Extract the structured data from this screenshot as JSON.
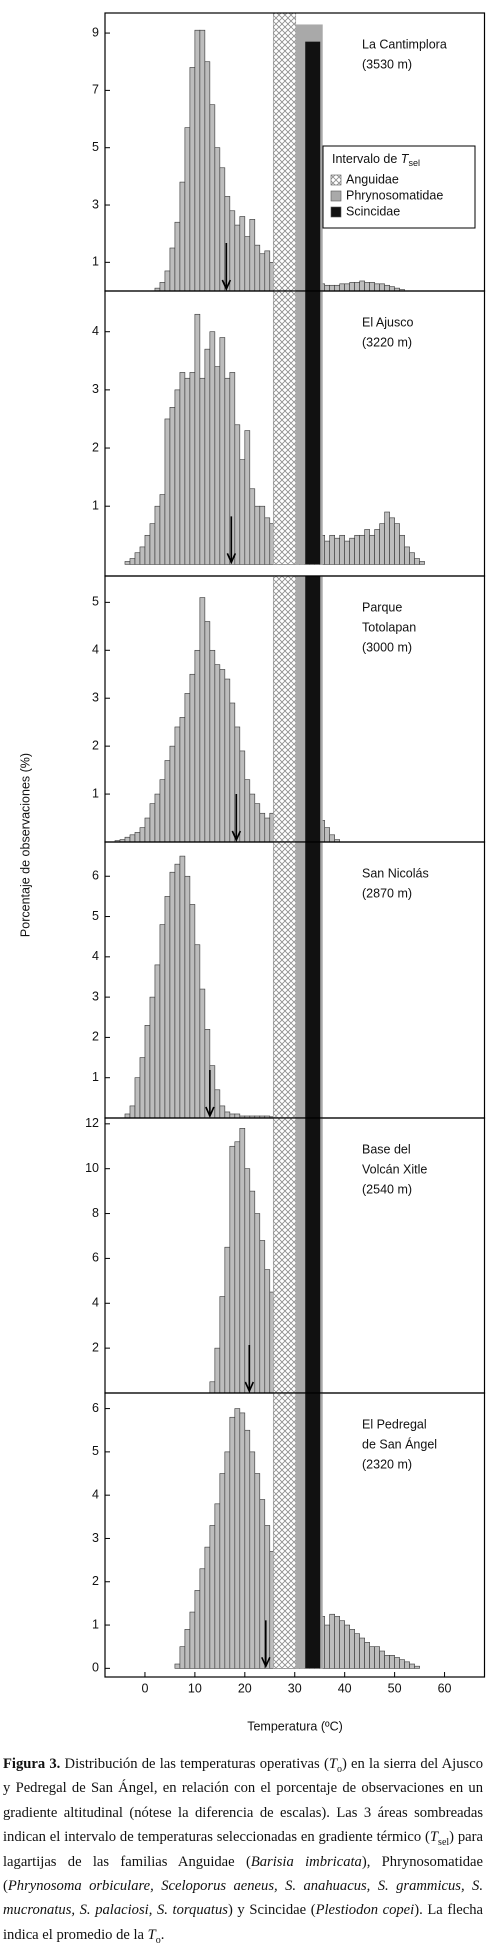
{
  "y_axis_title": "Porcentaje de observaciones (%)",
  "x_axis": {
    "title": "Temperatura (ºC)",
    "xlim": [
      -8,
      68
    ],
    "xticks": [
      0,
      10,
      20,
      30,
      40,
      50,
      60
    ]
  },
  "bands": [
    {
      "name": "Anguidae",
      "range": [
        25.7,
        30.2
      ],
      "pattern": "crosshatch",
      "color": "#8c8c8c"
    },
    {
      "name": "Phrynosomatidae",
      "range": [
        30.2,
        35.6
      ],
      "color": "#a9a9a9"
    },
    {
      "name": "Scincidae",
      "range": [
        32.1,
        35.1
      ],
      "color": "#111111"
    }
  ],
  "legend": {
    "title": "Intervalo de ",
    "title_symbol": "T",
    "title_subscript": "sel"
  },
  "chart_data": [
    {
      "type": "histogram",
      "label_lines": [
        "La Cantimplora",
        "(3530 m)"
      ],
      "color": "#bdbdbd",
      "bins": [
        2,
        3,
        4,
        5,
        6,
        7,
        8,
        9,
        10,
        11,
        12,
        13,
        14,
        15,
        16,
        17,
        18,
        19,
        20,
        21,
        22,
        23,
        24,
        25,
        26,
        27,
        28,
        29,
        30,
        31,
        32,
        33,
        34,
        35,
        36,
        37,
        38,
        39,
        40,
        41,
        42,
        43,
        44,
        45,
        46,
        47,
        48,
        49,
        50,
        51,
        52
      ],
      "values": [
        0.1,
        0.3,
        0.7,
        1.5,
        2.4,
        3.8,
        5.7,
        7.8,
        9.1,
        9.1,
        8.0,
        6.5,
        5.0,
        4.3,
        3.3,
        2.8,
        2.3,
        2.6,
        1.9,
        2.5,
        1.6,
        1.3,
        1.4,
        1.0,
        0.7,
        0.6,
        0.5,
        0.4,
        0.4,
        0.35,
        0.3,
        0.3,
        0.3,
        0.25,
        0.2,
        0.2,
        0.2,
        0.25,
        0.25,
        0.3,
        0.3,
        0.35,
        0.3,
        0.3,
        0.25,
        0.25,
        0.2,
        0.15,
        0.1,
        0.05
      ],
      "ylim": [
        0,
        9.7
      ],
      "yticks": [
        1,
        3,
        5,
        7,
        9
      ],
      "mean": 16.3,
      "band_tops": [
        null,
        9.3,
        8.7
      ]
    },
    {
      "type": "histogram",
      "label_lines": [
        "El Ajusco",
        "(3220 m)"
      ],
      "color": "#bdbdbd",
      "bins": [
        -4,
        -3,
        -2,
        -1,
        0,
        1,
        2,
        3,
        4,
        5,
        6,
        7,
        8,
        9,
        10,
        11,
        12,
        13,
        14,
        15,
        16,
        17,
        18,
        19,
        20,
        21,
        22,
        23,
        24,
        25,
        26,
        27,
        28,
        29,
        30,
        31,
        32,
        33,
        34,
        35,
        36,
        37,
        38,
        39,
        40,
        41,
        42,
        43,
        44,
        45,
        46,
        47,
        48,
        49,
        50,
        51,
        52,
        53,
        54,
        55,
        56
      ],
      "values": [
        0.05,
        0.1,
        0.2,
        0.3,
        0.5,
        0.7,
        1.0,
        1.2,
        2.5,
        2.7,
        3.0,
        3.3,
        3.2,
        3.3,
        4.3,
        3.2,
        3.7,
        4.0,
        3.4,
        3.9,
        3.2,
        3.3,
        2.4,
        1.8,
        2.3,
        1.3,
        1.0,
        1.0,
        0.8,
        0.7,
        0.6,
        0.5,
        0.5,
        0.4,
        0.45,
        0.4,
        0.5,
        0.4,
        0.4,
        0.5,
        0.4,
        0.5,
        0.45,
        0.5,
        0.4,
        0.45,
        0.5,
        0.5,
        0.6,
        0.5,
        0.6,
        0.7,
        0.9,
        0.8,
        0.7,
        0.5,
        0.3,
        0.2,
        0.1,
        0.05
      ],
      "ylim": [
        -0.2,
        4.7
      ],
      "yticks": [
        1,
        2,
        3,
        4
      ],
      "mean": 17.3
    },
    {
      "type": "histogram",
      "label_lines": [
        "Parque",
        "Totolapan",
        "(3000 m)"
      ],
      "color": "#bdbdbd",
      "bins": [
        -6,
        -5,
        -4,
        -3,
        -2,
        -1,
        0,
        1,
        2,
        3,
        4,
        5,
        6,
        7,
        8,
        9,
        10,
        11,
        12,
        13,
        14,
        15,
        16,
        17,
        18,
        19,
        20,
        21,
        22,
        23,
        24,
        25,
        26,
        27,
        28,
        29,
        30,
        31,
        32,
        33,
        34,
        35,
        36,
        37,
        38,
        39
      ],
      "values": [
        0.03,
        0.05,
        0.1,
        0.15,
        0.2,
        0.3,
        0.5,
        0.8,
        1.0,
        1.3,
        1.7,
        2.0,
        2.4,
        2.6,
        3.1,
        3.5,
        4.0,
        5.1,
        4.6,
        4.0,
        3.7,
        3.6,
        3.4,
        2.9,
        2.4,
        1.9,
        1.3,
        1.0,
        0.8,
        0.6,
        0.5,
        0.6,
        0.55,
        0.6,
        0.65,
        0.7,
        0.7,
        0.75,
        0.7,
        0.65,
        0.55,
        0.45,
        0.3,
        0.15,
        0.05
      ],
      "ylim": [
        0,
        5.55
      ],
      "yticks": [
        1,
        2,
        3,
        4,
        5
      ],
      "mean": 18.3
    },
    {
      "type": "histogram",
      "label_lines": [
        "San Nicolás",
        "(2870 m)"
      ],
      "color": "#bdbdbd",
      "bins": [
        -4,
        -3,
        -2,
        -1,
        0,
        1,
        2,
        3,
        4,
        5,
        6,
        7,
        8,
        9,
        10,
        11,
        12,
        13,
        14,
        15,
        16,
        17,
        18,
        19,
        20,
        21,
        22,
        23,
        24,
        25,
        26,
        27
      ],
      "values": [
        0.1,
        0.3,
        1.0,
        1.5,
        2.3,
        3.0,
        3.8,
        4.8,
        5.5,
        6.1,
        6.3,
        6.5,
        6.0,
        5.3,
        4.3,
        3.2,
        2.2,
        1.3,
        0.7,
        0.3,
        0.15,
        0.1,
        0.1,
        0.05,
        0.05,
        0.05,
        0.05,
        0.05,
        0.05,
        0.03,
        0.03
      ],
      "ylim": [
        0,
        6.85
      ],
      "yticks": [
        1,
        2,
        3,
        4,
        5,
        6
      ],
      "mean": 13.0
    },
    {
      "type": "histogram",
      "label_lines": [
        "Base del",
        "Volcán Xitle",
        "(2540 m)"
      ],
      "color": "#bdbdbd",
      "bins": [
        13,
        14,
        15,
        16,
        17,
        18,
        19,
        20,
        21,
        22,
        23,
        24,
        25,
        26,
        27,
        28,
        29,
        30,
        31,
        32,
        33
      ],
      "values": [
        0.5,
        2.0,
        4.3,
        6.5,
        11.0,
        11.2,
        11.8,
        10.0,
        9.0,
        8.0,
        6.8,
        5.5,
        4.5,
        3.5,
        2.8,
        2.0,
        1.3,
        0.8,
        0.5,
        0.3
      ],
      "ylim": [
        0,
        12.26
      ],
      "yticks": [
        2,
        4,
        6,
        8,
        10,
        12
      ],
      "mean": 20.9
    },
    {
      "type": "histogram",
      "label_lines": [
        "El Pedregal",
        "de San Ángel",
        "(2320 m)"
      ],
      "color": "#bdbdbd",
      "bins": [
        6,
        7,
        8,
        9,
        10,
        11,
        12,
        13,
        14,
        15,
        16,
        17,
        18,
        19,
        20,
        21,
        22,
        23,
        24,
        25,
        26,
        27,
        28,
        29,
        30,
        31,
        32,
        33,
        34,
        35,
        36,
        37,
        38,
        39,
        40,
        41,
        42,
        43,
        44,
        45,
        46,
        47,
        48,
        49,
        50,
        51,
        52,
        53,
        54,
        55
      ],
      "values": [
        0.1,
        0.5,
        0.9,
        1.3,
        1.8,
        2.3,
        2.8,
        3.3,
        3.8,
        4.5,
        5.0,
        5.8,
        6.0,
        5.9,
        5.5,
        5.0,
        4.5,
        3.9,
        3.3,
        2.7,
        2.2,
        1.8,
        1.6,
        1.4,
        1.2,
        1.2,
        1.1,
        1.1,
        1.1,
        1.2,
        1.0,
        1.25,
        1.2,
        1.1,
        1.0,
        0.9,
        0.8,
        0.7,
        0.6,
        0.5,
        0.5,
        0.4,
        0.3,
        0.3,
        0.25,
        0.2,
        0.15,
        0.1,
        0.05
      ],
      "ylim": [
        -0.2,
        6.36
      ],
      "yticks": [
        0,
        1,
        2,
        3,
        4,
        5,
        6
      ],
      "mean": 24.2
    }
  ],
  "caption": [
    {
      "text": "Figura 3.",
      "style": "bold"
    },
    {
      "text": " Distribución de las temperaturas operativas (",
      "style": "plain"
    },
    {
      "text": "T",
      "style": "italic"
    },
    {
      "text": "o",
      "style": "sub"
    },
    {
      "text": ") en la sierra del Ajusco y Pedregal de San Ángel, en relación con el porcentaje de observaciones en un gradiente altitudinal (nótese la diferencia de escalas). Las 3 áreas sombreadas indican el intervalo de temperaturas seleccionadas en gradiente térmico (",
      "style": "plain"
    },
    {
      "text": "T",
      "style": "italic"
    },
    {
      "text": "sel",
      "style": "sub"
    },
    {
      "text": ") para lagartijas de las familias Anguidae (",
      "style": "plain"
    },
    {
      "text": "Barisia imbricata",
      "style": "italic"
    },
    {
      "text": "), Phrynosomatidae (",
      "style": "plain"
    },
    {
      "text": "Phrynosoma orbiculare, Sceloporus aeneus, S. anahuacus, S. grammicus, S. mucronatus, S. palaciosi, S. torquatus",
      "style": "italic"
    },
    {
      "text": ") y Scincidae (",
      "style": "plain"
    },
    {
      "text": "Plestiodon copei",
      "style": "italic"
    },
    {
      "text": "). La flecha indica el promedio de la ",
      "style": "plain"
    },
    {
      "text": "T",
      "style": "italic"
    },
    {
      "text": "o",
      "style": "sub"
    },
    {
      "text": ".",
      "style": "plain"
    }
  ]
}
